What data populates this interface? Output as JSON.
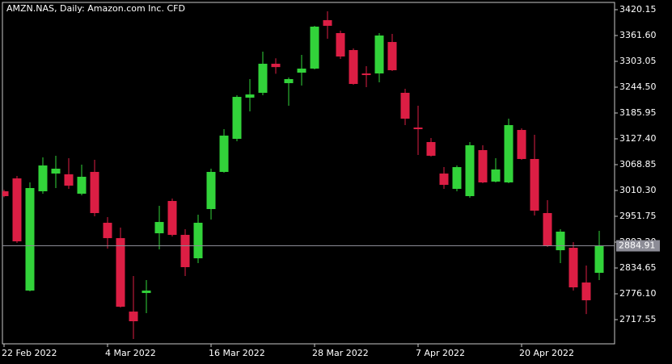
{
  "chart_data": {
    "type": "candlestick",
    "title": "AMZN.NAS, Daily:  Amazon.com Inc. CFD",
    "categories": [
      "22 Feb 2022",
      null,
      null,
      null,
      null,
      null,
      null,
      null,
      "4 Mar 2022",
      null,
      null,
      null,
      null,
      null,
      null,
      null,
      "16 Mar 2022",
      null,
      null,
      null,
      null,
      null,
      null,
      null,
      "28 Mar 2022",
      null,
      null,
      null,
      null,
      null,
      null,
      null,
      "7 Apr 2022",
      null,
      null,
      null,
      null,
      null,
      null,
      null,
      "20 Apr 2022",
      null,
      null,
      null,
      null,
      null,
      null
    ],
    "open": [
      3008.5,
      3037.7,
      2783.4,
      3008.5,
      3048.7,
      3046.9,
      3003.0,
      3052.4,
      2937.1,
      2902.3,
      2735.8,
      2777.9,
      2913.3,
      2986.5,
      2909.7,
      2856.6,
      2968.2,
      3052.4,
      3127.4,
      3220.7,
      3231.7,
      3297.6,
      3253.6,
      3277.4,
      3286.6,
      3396.4,
      3367.1,
      3328.6,
      3275.6,
      3275.6,
      3346.9,
      3231.7,
      3153.0,
      3120.1,
      3048.7,
      3014.0,
      2997.5,
      3101.8,
      3030.4,
      3028.6,
      3147.5,
      3081.7,
      2959.1,
      2874.9,
      2880.4,
      2801.7,
      2823.7
    ],
    "high": [
      3012.0,
      3043.2,
      3028.6,
      3085.3,
      3089.0,
      3083.5,
      3068.8,
      3079.8,
      2949.9,
      2926.1,
      2816.4,
      2807.2,
      2975.5,
      2992.0,
      2922.4,
      2955.4,
      3059.7,
      3149.3,
      3226.2,
      3262.8,
      3325.0,
      3310.0,
      3266.4,
      3317.7,
      3383.6,
      3416.5,
      3372.6,
      3332.3,
      3292.1,
      3367.1,
      3365.3,
      3240.8,
      3202.4,
      3129.2,
      3063.3,
      3067.0,
      3120.1,
      3112.8,
      3083.5,
      3173.1,
      3151.2,
      3136.5,
      2988.3,
      2922.4,
      2893.2,
      2840.1,
      2918.8
    ],
    "low": [
      2995.0,
      2891.3,
      2781.6,
      3003.0,
      3015.8,
      3014.0,
      2999.3,
      2951.8,
      2878.6,
      2745.0,
      2673.6,
      2732.2,
      2876.7,
      2906.0,
      2816.4,
      2845.6,
      2944.4,
      3050.6,
      3121.9,
      3189.6,
      3226.2,
      3275.0,
      3202.4,
      3248.2,
      3284.7,
      3354.3,
      3308.5,
      3250.0,
      3244.5,
      3255.5,
      3281.1,
      3158.5,
      3090.8,
      3087.1,
      3014.0,
      3008.5,
      2993.8,
      3026.8,
      3028.6,
      3026.8,
      3079.8,
      2953.6,
      2882.2,
      2845.6,
      2783.4,
      2730.2,
      2807.2
    ],
    "close": [
      2997.5,
      2895.0,
      3015.8,
      3067.0,
      3059.7,
      3021.3,
      3041.4,
      2959.1,
      2902.3,
      2746.8,
      2713.9,
      2783.4,
      2938.9,
      2909.7,
      2836.5,
      2937.1,
      3052.4,
      3134.7,
      3222.5,
      3228.0,
      3297.6,
      3290.0,
      3262.8,
      3286.6,
      3381.7,
      3383.6,
      3314.0,
      3251.8,
      3271.9,
      3361.6,
      3282.9,
      3173.1,
      3149.3,
      3089.0,
      3023.1,
      3063.3,
      3112.8,
      3028.6,
      3057.9,
      3158.5,
      3081.7,
      2964.6,
      2885.9,
      2917.0,
      2790.7,
      2761.4,
      2884.91
    ],
    "up_color": "#32d33a",
    "down_color": "#dc1e44",
    "current_price": 2884.91,
    "ylim": [
      2662.7,
      3436.6
    ],
    "yticks": [
      3420.15,
      {
        "value": 3361.6,
        "label": "3361.60"
      },
      3303.05,
      {
        "value": 3244.5,
        "label": "3244.50"
      },
      3185.95,
      {
        "value": 3127.4,
        "label": "3127.40"
      },
      3068.85,
      {
        "value": 3010.3,
        "label": "3010.30"
      },
      2951.75,
      {
        "value": 2893.2,
        "label": "2893.20"
      },
      2834.65,
      {
        "value": 2776.1,
        "label": "2776.10"
      },
      2717.55
    ]
  }
}
